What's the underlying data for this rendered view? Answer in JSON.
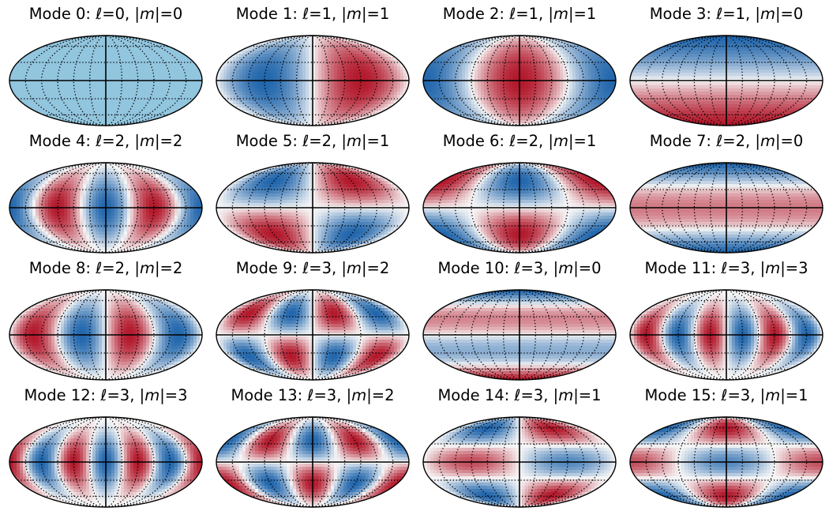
{
  "figure": {
    "projection": "mollweide",
    "colormap": "RdBu_r",
    "colors": {
      "positive": "#b2182b",
      "negative": "#2166ac",
      "neutral": "#f7f7f7",
      "mode0_fill": "#92c5de",
      "gridline": "#000000",
      "outline": "#000000"
    },
    "graticule": "dotted meridians and parallels, solid equator and central meridian",
    "layout": {
      "rows": 4,
      "columns": 4
    },
    "panels": [
      {
        "mode": 0,
        "l": 0,
        "m": 0,
        "title": {
          "prefix": "Mode 0: ",
          "l_text": "=0, |",
          "m_text": "|=0"
        }
      },
      {
        "mode": 1,
        "l": 1,
        "m": 1,
        "title": {
          "prefix": "Mode 1: ",
          "l_text": "=1, |",
          "m_text": "|=1"
        }
      },
      {
        "mode": 2,
        "l": 1,
        "m": 1,
        "title": {
          "prefix": "Mode 2: ",
          "l_text": "=1, |",
          "m_text": "|=1"
        }
      },
      {
        "mode": 3,
        "l": 1,
        "m": 0,
        "title": {
          "prefix": "Mode 3: ",
          "l_text": "=1, |",
          "m_text": "|=0"
        }
      },
      {
        "mode": 4,
        "l": 2,
        "m": 2,
        "title": {
          "prefix": "Mode 4: ",
          "l_text": "=2, |",
          "m_text": "|=2"
        }
      },
      {
        "mode": 5,
        "l": 2,
        "m": 1,
        "title": {
          "prefix": "Mode 5: ",
          "l_text": "=2, |",
          "m_text": "|=1"
        }
      },
      {
        "mode": 6,
        "l": 2,
        "m": 1,
        "title": {
          "prefix": "Mode 6: ",
          "l_text": "=2, |",
          "m_text": "|=1"
        }
      },
      {
        "mode": 7,
        "l": 2,
        "m": 0,
        "title": {
          "prefix": "Mode 7: ",
          "l_text": "=2, |",
          "m_text": "|=0"
        }
      },
      {
        "mode": 8,
        "l": 2,
        "m": 2,
        "title": {
          "prefix": "Mode 8: ",
          "l_text": "=2, |",
          "m_text": "|=2"
        }
      },
      {
        "mode": 9,
        "l": 3,
        "m": 2,
        "title": {
          "prefix": "Mode 9: ",
          "l_text": "=3, |",
          "m_text": "|=2"
        }
      },
      {
        "mode": 10,
        "l": 3,
        "m": 0,
        "title": {
          "prefix": "Mode 10: ",
          "l_text": "=3, |",
          "m_text": "|=0"
        }
      },
      {
        "mode": 11,
        "l": 3,
        "m": 3,
        "title": {
          "prefix": "Mode 11: ",
          "l_text": "=3, |",
          "m_text": "|=3"
        }
      },
      {
        "mode": 12,
        "l": 3,
        "m": 3,
        "title": {
          "prefix": "Mode 12: ",
          "l_text": "=3, |",
          "m_text": "|=3"
        }
      },
      {
        "mode": 13,
        "l": 3,
        "m": 2,
        "title": {
          "prefix": "Mode 13: ",
          "l_text": "=3, |",
          "m_text": "|=2"
        }
      },
      {
        "mode": 14,
        "l": 3,
        "m": 1,
        "title": {
          "prefix": "Mode 14: ",
          "l_text": "=3, |",
          "m_text": "|=1"
        }
      },
      {
        "mode": 15,
        "l": 3,
        "m": 1,
        "title": {
          "prefix": "Mode 15: ",
          "l_text": "=3, |",
          "m_text": "|=1"
        }
      }
    ]
  }
}
